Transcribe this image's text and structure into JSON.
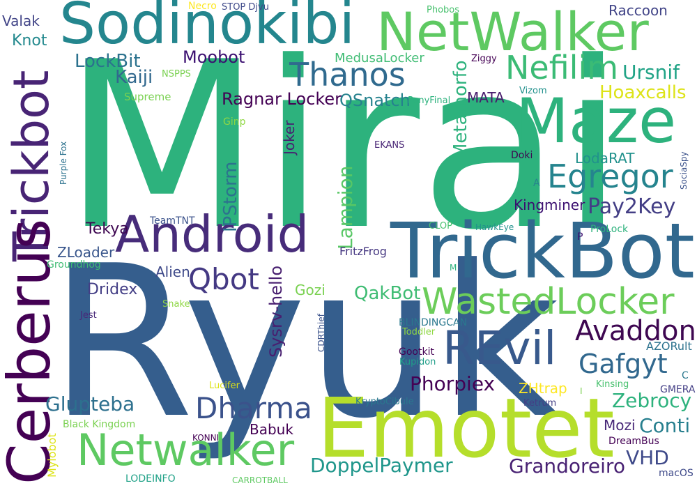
{
  "words": [
    {
      "text": "Mirai",
      "color": "#2db27d"
    },
    {
      "text": "Ryuk",
      "color": "#355e8d"
    },
    {
      "text": "Sodinokibi",
      "color": "#24868e"
    },
    {
      "text": "NetWalker",
      "color": "#5ec962"
    },
    {
      "text": "Emotet",
      "color": "#b5de2b"
    },
    {
      "text": "TrickBot",
      "color": "#31688e"
    },
    {
      "text": "Trickbot",
      "color": "#482475"
    },
    {
      "text": "Cerberus",
      "color": "#440154"
    },
    {
      "text": "Android",
      "color": "#472c7a"
    },
    {
      "text": "Maze",
      "color": "#2db27d"
    },
    {
      "text": "REvil",
      "color": "#38598c"
    },
    {
      "text": "WastedLocker",
      "color": "#6ccd5a"
    },
    {
      "text": "Netwalker",
      "color": "#5ec962"
    },
    {
      "text": "Thanos",
      "color": "#306a8e"
    },
    {
      "text": "Nefilim",
      "color": "#3bbb75"
    },
    {
      "text": "Egregor",
      "color": "#25848e"
    },
    {
      "text": "Dharma",
      "color": "#3b528b"
    },
    {
      "text": "Qbot",
      "color": "#443983"
    },
    {
      "text": "Avaddon",
      "color": "#3e0751"
    },
    {
      "text": "Gafgyt",
      "color": "#31688e"
    },
    {
      "text": "Phorpiex",
      "color": "#440154"
    },
    {
      "text": "Glupteba",
      "color": "#2d708e"
    },
    {
      "text": "Pay2Key",
      "color": "#433e85"
    },
    {
      "text": "Ursnif",
      "color": "#20a386"
    },
    {
      "text": "Hoaxcalls",
      "color": "#dde318"
    },
    {
      "text": "IPStorm",
      "color": "#2c728e"
    },
    {
      "text": "Lampion",
      "color": "#58c765"
    },
    {
      "text": "Metamorfo",
      "color": "#2db27d"
    },
    {
      "text": "Sysrv-hello",
      "color": "#481f70"
    },
    {
      "text": "QakBot",
      "color": "#3fbc73"
    },
    {
      "text": "DoppelPaymer",
      "color": "#1f968b"
    },
    {
      "text": "Grandoreiro",
      "color": "#482173"
    },
    {
      "text": "Zebrocy",
      "color": "#2db27d"
    },
    {
      "text": "Conti",
      "color": "#277f8e"
    },
    {
      "text": "VHD",
      "color": "#3e4989"
    },
    {
      "text": "LockBit",
      "color": "#2c728e"
    },
    {
      "text": "Kaiji",
      "color": "#31688e"
    },
    {
      "text": "Moobot",
      "color": "#3b0f70"
    },
    {
      "text": "MedusaLocker",
      "color": "#3fbc73"
    },
    {
      "text": "Ragnar Locker",
      "color": "#440154"
    },
    {
      "text": "QSnatch",
      "color": "#26828e"
    },
    {
      "text": "MATA",
      "color": "#481b6d"
    },
    {
      "text": "Kingminer",
      "color": "#3b0f70"
    },
    {
      "text": "LodaRAT",
      "color": "#21918c"
    },
    {
      "text": "Tekya",
      "color": "#3e0751"
    },
    {
      "text": "ZLoader",
      "color": "#39568c"
    },
    {
      "text": "Dridex",
      "color": "#433e85"
    },
    {
      "text": "Alien",
      "color": "#3e4989"
    },
    {
      "text": "Gozi",
      "color": "#7ad151"
    },
    {
      "text": "Mozi",
      "color": "#482878"
    },
    {
      "text": "Babuk",
      "color": "#440154"
    },
    {
      "text": "Raccoon",
      "color": "#414487"
    },
    {
      "text": "Valak",
      "color": "#414487"
    },
    {
      "text": "Knot",
      "color": "#23898e"
    },
    {
      "text": "Joker",
      "color": "#481f70"
    },
    {
      "text": "Ginp",
      "color": "#8fd744"
    },
    {
      "text": "TeamTNT",
      "color": "#3b528b"
    },
    {
      "text": "FritzFrog",
      "color": "#453781"
    },
    {
      "text": "Groundhog",
      "color": "#3fbc73"
    },
    {
      "text": "Snake",
      "color": "#8fd744"
    },
    {
      "text": "Jest",
      "color": "#482878"
    },
    {
      "text": "CDRThief",
      "color": "#3b528b"
    },
    {
      "text": "BLINDINGCAN",
      "color": "#2a788e"
    },
    {
      "text": "Toddler",
      "color": "#8fd744"
    },
    {
      "text": "Gootkit",
      "color": "#440154"
    },
    {
      "text": "Kupidon",
      "color": "#1f9e89"
    },
    {
      "text": "ZHtrap",
      "color": "#fde725"
    },
    {
      "text": "KryptoCibule",
      "color": "#2a788e"
    },
    {
      "text": "Ketrum",
      "color": "#433e85"
    },
    {
      "text": "Kinsing",
      "color": "#48c16e"
    },
    {
      "text": "GMERA",
      "color": "#433e85"
    },
    {
      "text": "AZORult",
      "color": "#2c728e"
    },
    {
      "text": "DreamBus",
      "color": "#440154"
    },
    {
      "text": "macOS",
      "color": "#3e4989"
    },
    {
      "text": "Lucifer",
      "color": "#dde318"
    },
    {
      "text": "Black Kingdom",
      "color": "#7ad151"
    },
    {
      "text": "Mylobot",
      "color": "#dde318"
    },
    {
      "text": "KONNI",
      "color": "#440154"
    },
    {
      "text": "LODEINFO",
      "color": "#1fa187"
    },
    {
      "text": "CARROTBALL",
      "color": "#5ec962"
    },
    {
      "text": "Necro",
      "color": "#fde725"
    },
    {
      "text": "STOP Djvu",
      "color": "#3e4989"
    },
    {
      "text": "Phobos",
      "color": "#48c16e"
    },
    {
      "text": "Ziggy",
      "color": "#440154"
    },
    {
      "text": "NSPPS",
      "color": "#7ad151"
    },
    {
      "text": "Supreme",
      "color": "#7ad151"
    },
    {
      "text": "PonyFinal",
      "color": "#2db27d"
    },
    {
      "text": "Vizom",
      "color": "#21918c"
    },
    {
      "text": "EKANS",
      "color": "#482475"
    },
    {
      "text": "Doki",
      "color": "#3e0751"
    },
    {
      "text": "A",
      "color": "#26828e"
    },
    {
      "text": "SociaSpy",
      "color": "#3b528b"
    },
    {
      "text": "ProLock",
      "color": "#2db27d"
    },
    {
      "text": "HawkEye",
      "color": "#21918c"
    },
    {
      "text": "CLOP",
      "color": "#48c16e"
    },
    {
      "text": "P",
      "color": "#3b0f70"
    },
    {
      "text": "M",
      "color": "#2db27d"
    },
    {
      "text": "C",
      "color": "#2a788e"
    },
    {
      "text": "I",
      "color": "#7ad151"
    },
    {
      "text": "Purple Fox",
      "color": "#2c728e"
    }
  ]
}
